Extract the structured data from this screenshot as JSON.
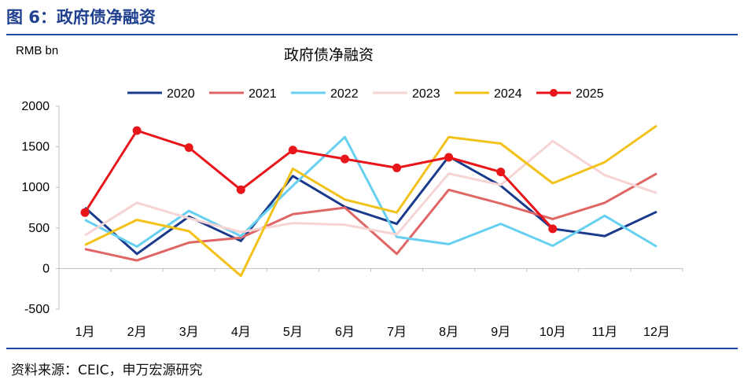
{
  "figure": {
    "title": "图 6：政府债净融资",
    "source": "资料来源：CEIC，申万宏源研究"
  },
  "colors": {
    "accent": "#1f3f8f",
    "rule": "#1f4aa8"
  },
  "chart_data": {
    "type": "line",
    "title": "政府债净融资",
    "unit_label": "RMB bn",
    "xlabel": "",
    "ylabel": "",
    "categories": [
      "1月",
      "2月",
      "3月",
      "4月",
      "5月",
      "6月",
      "7月",
      "8月",
      "9月",
      "10月",
      "11月",
      "12月"
    ],
    "ylim": [
      -500,
      2000
    ],
    "yticks": [
      -500,
      0,
      500,
      1000,
      1500,
      2000
    ],
    "grid": false,
    "legend": "top",
    "series": [
      {
        "name": "2020",
        "color": "#1a3a8c",
        "markers": false,
        "values": [
          750,
          180,
          640,
          340,
          1140,
          760,
          550,
          1380,
          1020,
          490,
          400,
          700
        ]
      },
      {
        "name": "2021",
        "color": "#e06666",
        "markers": false,
        "values": [
          240,
          100,
          320,
          380,
          670,
          750,
          180,
          970,
          800,
          610,
          810,
          1170
        ]
      },
      {
        "name": "2022",
        "color": "#67d0f0",
        "markers": false,
        "values": [
          600,
          270,
          710,
          400,
          1020,
          1620,
          390,
          300,
          550,
          280,
          650,
          270
        ]
      },
      {
        "name": "2023",
        "color": "#f6d4d4",
        "markers": false,
        "values": [
          410,
          810,
          620,
          450,
          560,
          540,
          420,
          1170,
          1030,
          1570,
          1150,
          930
        ]
      },
      {
        "name": "2024",
        "color": "#f2c21b",
        "markers": false,
        "values": [
          290,
          600,
          460,
          -90,
          1230,
          850,
          690,
          1620,
          1540,
          1050,
          1310,
          1760
        ]
      },
      {
        "name": "2025",
        "color": "#e8161b",
        "markers": true,
        "values": [
          690,
          1700,
          1490,
          970,
          1460,
          1350,
          1240,
          1370,
          1190,
          490,
          null,
          null
        ]
      }
    ]
  }
}
